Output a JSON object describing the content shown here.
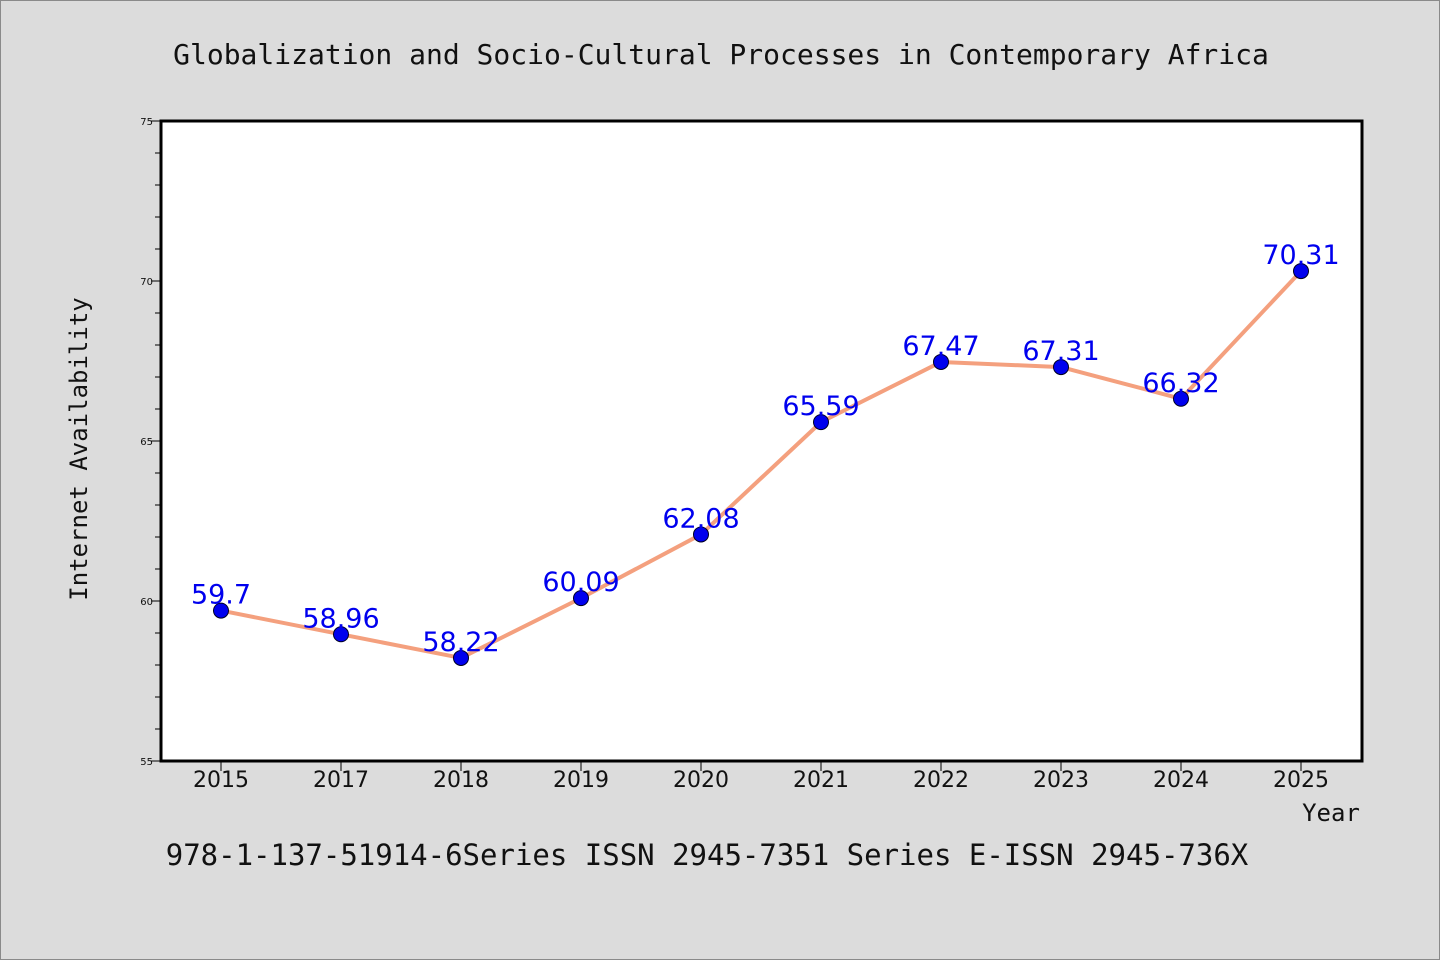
{
  "chart_data": {
    "type": "line",
    "title": "Globalization and Socio-Cultural Processes in Contemporary Africa",
    "xlabel": "Year",
    "ylabel": "Internet Availability",
    "categories": [
      "2015",
      "2017",
      "2018",
      "2019",
      "2020",
      "2021",
      "2022",
      "2023",
      "2024",
      "2025"
    ],
    "values": [
      59.7,
      58.96,
      58.22,
      60.09,
      62.08,
      65.59,
      67.47,
      67.31,
      66.32,
      70.31
    ],
    "data_labels": [
      "59.7",
      "58.96",
      "58.22",
      "60.09",
      "62.08",
      "65.59",
      "67.47",
      "67.31",
      "66.32",
      "70.31"
    ],
    "ylim": [
      55,
      75
    ],
    "yticks": [
      "55",
      "60",
      "65",
      "70",
      "75"
    ],
    "grid": false,
    "line_color": "#f4a07e",
    "marker_color": "#0000ee",
    "label_color": "#0000ee"
  },
  "footer": {
    "text": "978-1-137-51914-6Series ISSN 2945-7351 Series E-ISSN 2945-736X"
  }
}
